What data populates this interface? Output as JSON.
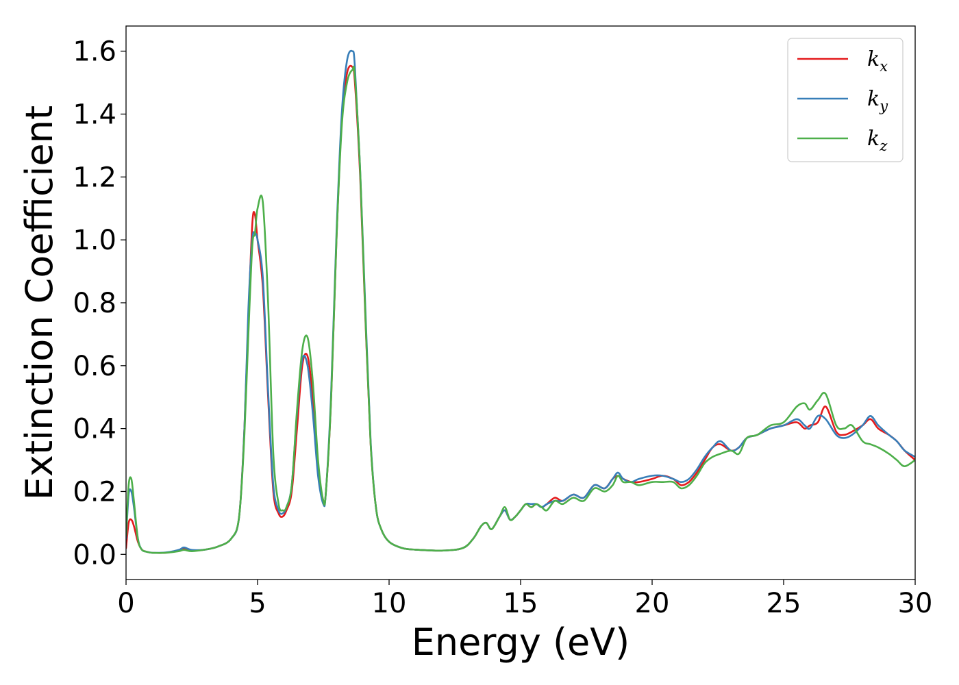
{
  "chart_data": {
    "type": "line",
    "xlabel": "Energy (eV)",
    "ylabel": "Extinction Coefficient",
    "xlim": [
      0,
      30
    ],
    "ylim": [
      -0.08,
      1.68
    ],
    "xticks": [
      0,
      5,
      10,
      15,
      20,
      25,
      30
    ],
    "xtick_labels": [
      "0",
      "5",
      "10",
      "15",
      "20",
      "25",
      "30"
    ],
    "yticks": [
      0.0,
      0.2,
      0.4,
      0.6,
      0.8,
      1.0,
      1.2,
      1.4,
      1.6
    ],
    "ytick_labels": [
      "0.0",
      "0.2",
      "0.4",
      "0.6",
      "0.8",
      "1.0",
      "1.2",
      "1.4",
      "1.6"
    ],
    "grid": false,
    "legend_position": "top-right",
    "series": [
      {
        "name": "k",
        "subscript": "x",
        "color": "#e41a1c",
        "x": [
          0,
          0.1,
          0.2,
          0.3,
          0.45,
          0.6,
          0.8,
          1,
          1.5,
          2,
          2.2,
          2.5,
          3,
          3.5,
          4,
          4.3,
          4.5,
          4.65,
          4.8,
          4.9,
          5,
          5.2,
          5.4,
          5.6,
          5.8,
          5.95,
          6.1,
          6.3,
          6.5,
          6.7,
          6.9,
          7.1,
          7.3,
          7.5,
          7.6,
          7.8,
          8,
          8.2,
          8.4,
          8.6,
          8.7,
          8.9,
          9.1,
          9.3,
          9.5,
          9.7,
          10,
          10.5,
          11,
          12,
          12.8,
          13.2,
          13.5,
          13.7,
          13.9,
          14.2,
          14.4,
          14.6,
          14.8,
          15,
          15.2,
          15.4,
          15.6,
          15.8,
          16,
          16.3,
          16.6,
          17,
          17.4,
          17.8,
          18.2,
          18.5,
          18.7,
          18.9,
          19.2,
          19.5,
          20,
          20.4,
          20.8,
          21.1,
          21.4,
          21.7,
          22,
          22.3,
          22.6,
          23,
          23.3,
          23.6,
          24,
          24.5,
          25,
          25.5,
          25.8,
          26,
          26.3,
          26.6,
          27,
          27.3,
          27.6,
          28,
          28.3,
          28.6,
          29,
          29.3,
          29.6,
          30
        ],
        "y": [
          0.02,
          0.1,
          0.11,
          0.09,
          0.04,
          0.015,
          0.008,
          0.005,
          0.005,
          0.012,
          0.018,
          0.012,
          0.015,
          0.025,
          0.05,
          0.12,
          0.4,
          0.75,
          1.05,
          1.08,
          1.0,
          0.85,
          0.5,
          0.2,
          0.13,
          0.12,
          0.14,
          0.2,
          0.4,
          0.6,
          0.63,
          0.5,
          0.28,
          0.17,
          0.2,
          0.5,
          1.0,
          1.38,
          1.53,
          1.55,
          1.5,
          1.2,
          0.75,
          0.35,
          0.15,
          0.08,
          0.04,
          0.02,
          0.015,
          0.012,
          0.02,
          0.05,
          0.09,
          0.1,
          0.08,
          0.12,
          0.14,
          0.11,
          0.12,
          0.14,
          0.16,
          0.15,
          0.16,
          0.15,
          0.16,
          0.18,
          0.17,
          0.19,
          0.18,
          0.22,
          0.21,
          0.24,
          0.25,
          0.24,
          0.23,
          0.23,
          0.24,
          0.25,
          0.24,
          0.22,
          0.23,
          0.26,
          0.3,
          0.34,
          0.35,
          0.33,
          0.34,
          0.37,
          0.38,
          0.4,
          0.41,
          0.42,
          0.4,
          0.41,
          0.42,
          0.47,
          0.39,
          0.38,
          0.39,
          0.41,
          0.43,
          0.4,
          0.38,
          0.36,
          0.33,
          0.3
        ]
      },
      {
        "name": "k",
        "subscript": "y",
        "color": "#377eb8",
        "x": [
          0,
          0.1,
          0.2,
          0.3,
          0.45,
          0.6,
          0.8,
          1,
          1.5,
          2,
          2.2,
          2.5,
          3,
          3.5,
          4,
          4.3,
          4.5,
          4.65,
          4.8,
          4.9,
          5,
          5.2,
          5.4,
          5.6,
          5.8,
          5.95,
          6.1,
          6.3,
          6.5,
          6.7,
          6.9,
          7.1,
          7.3,
          7.5,
          7.6,
          7.8,
          8,
          8.2,
          8.4,
          8.6,
          8.7,
          8.9,
          9.1,
          9.3,
          9.5,
          9.7,
          10,
          10.5,
          11,
          12,
          12.8,
          13.2,
          13.5,
          13.7,
          13.9,
          14.2,
          14.4,
          14.6,
          14.8,
          15,
          15.2,
          15.4,
          15.6,
          15.8,
          16,
          16.3,
          16.6,
          17,
          17.4,
          17.8,
          18.2,
          18.5,
          18.7,
          18.9,
          19.2,
          19.5,
          20,
          20.4,
          20.8,
          21.1,
          21.4,
          21.7,
          22,
          22.3,
          22.6,
          23,
          23.3,
          23.6,
          24,
          24.5,
          25,
          25.5,
          25.8,
          26,
          26.3,
          26.6,
          27,
          27.3,
          27.6,
          28,
          28.3,
          28.6,
          29,
          29.3,
          29.6,
          30
        ],
        "y": [
          0.05,
          0.19,
          0.2,
          0.15,
          0.05,
          0.015,
          0.008,
          0.005,
          0.006,
          0.014,
          0.022,
          0.014,
          0.015,
          0.025,
          0.05,
          0.12,
          0.4,
          0.78,
          1.0,
          1.02,
          1.0,
          0.88,
          0.52,
          0.22,
          0.14,
          0.13,
          0.15,
          0.22,
          0.45,
          0.62,
          0.6,
          0.45,
          0.25,
          0.16,
          0.2,
          0.52,
          1.02,
          1.4,
          1.57,
          1.6,
          1.55,
          1.22,
          0.78,
          0.36,
          0.15,
          0.08,
          0.04,
          0.02,
          0.015,
          0.012,
          0.02,
          0.05,
          0.09,
          0.1,
          0.08,
          0.12,
          0.14,
          0.11,
          0.12,
          0.14,
          0.16,
          0.16,
          0.16,
          0.15,
          0.16,
          0.17,
          0.17,
          0.19,
          0.18,
          0.22,
          0.21,
          0.24,
          0.26,
          0.24,
          0.23,
          0.24,
          0.25,
          0.25,
          0.24,
          0.23,
          0.24,
          0.27,
          0.31,
          0.34,
          0.36,
          0.33,
          0.34,
          0.37,
          0.38,
          0.4,
          0.41,
          0.43,
          0.41,
          0.4,
          0.44,
          0.43,
          0.38,
          0.37,
          0.38,
          0.41,
          0.44,
          0.41,
          0.38,
          0.36,
          0.33,
          0.31
        ]
      },
      {
        "name": "k",
        "subscript": "z",
        "color": "#4daf4a",
        "x": [
          0,
          0.1,
          0.2,
          0.3,
          0.45,
          0.6,
          0.8,
          1,
          1.5,
          2,
          2.2,
          2.5,
          3,
          3.5,
          4,
          4.3,
          4.5,
          4.65,
          4.8,
          4.9,
          5,
          5.2,
          5.4,
          5.6,
          5.8,
          5.95,
          6.1,
          6.3,
          6.5,
          6.7,
          6.9,
          7.1,
          7.3,
          7.5,
          7.6,
          7.8,
          8,
          8.2,
          8.4,
          8.6,
          8.7,
          8.9,
          9.1,
          9.3,
          9.5,
          9.7,
          10,
          10.5,
          11,
          12,
          12.8,
          13.2,
          13.5,
          13.7,
          13.9,
          14.2,
          14.4,
          14.6,
          14.8,
          15,
          15.2,
          15.4,
          15.6,
          15.8,
          16,
          16.3,
          16.6,
          17,
          17.4,
          17.8,
          18.2,
          18.5,
          18.7,
          18.9,
          19.2,
          19.5,
          20,
          20.4,
          20.8,
          21.1,
          21.4,
          21.7,
          22,
          22.3,
          22.6,
          23,
          23.3,
          23.6,
          24,
          24.5,
          25,
          25.5,
          25.8,
          26,
          26.3,
          26.6,
          27,
          27.3,
          27.6,
          28,
          28.3,
          28.6,
          29,
          29.3,
          29.6,
          30
        ],
        "y": [
          0.06,
          0.22,
          0.24,
          0.17,
          0.05,
          0.015,
          0.008,
          0.005,
          0.005,
          0.01,
          0.014,
          0.01,
          0.015,
          0.025,
          0.05,
          0.12,
          0.38,
          0.7,
          0.98,
          1.02,
          1.1,
          1.12,
          0.8,
          0.32,
          0.16,
          0.14,
          0.15,
          0.22,
          0.46,
          0.65,
          0.69,
          0.55,
          0.3,
          0.17,
          0.2,
          0.5,
          1.0,
          1.36,
          1.5,
          1.54,
          1.52,
          1.22,
          0.76,
          0.35,
          0.15,
          0.08,
          0.04,
          0.02,
          0.015,
          0.012,
          0.02,
          0.05,
          0.09,
          0.1,
          0.08,
          0.12,
          0.15,
          0.11,
          0.12,
          0.14,
          0.16,
          0.15,
          0.16,
          0.15,
          0.14,
          0.17,
          0.16,
          0.18,
          0.17,
          0.21,
          0.2,
          0.22,
          0.25,
          0.23,
          0.23,
          0.22,
          0.23,
          0.23,
          0.23,
          0.21,
          0.22,
          0.25,
          0.29,
          0.31,
          0.32,
          0.33,
          0.32,
          0.37,
          0.38,
          0.41,
          0.42,
          0.47,
          0.48,
          0.46,
          0.49,
          0.51,
          0.41,
          0.4,
          0.41,
          0.36,
          0.35,
          0.34,
          0.32,
          0.3,
          0.28,
          0.3
        ]
      }
    ]
  }
}
